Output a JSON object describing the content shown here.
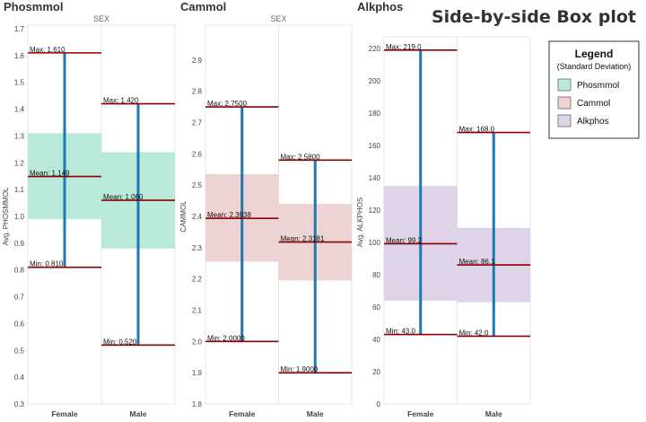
{
  "title": "Side-by-side Box plot",
  "legend": {
    "title": "Legend",
    "subtitle": "(Standard Deviation)",
    "items": [
      {
        "label": "Phosmmol",
        "color": "#b9e9d8"
      },
      {
        "label": "Cammol",
        "color": "#edd3d3"
      },
      {
        "label": "Alkphos",
        "color": "#dfd3e7"
      }
    ]
  },
  "colors": {
    "range_line": "#1f77b4",
    "stat_line": "#8b0000",
    "gridline": "#e6e6e6"
  },
  "chart_data": [
    {
      "type": "box",
      "title": "Phosmmol",
      "header": "SEX",
      "ylabel": "Avg. PHOSMMOL",
      "categories": [
        "Female",
        "Male"
      ],
      "ylim": [
        0.3,
        1.7
      ],
      "yticks": [
        0.3,
        0.4,
        0.5,
        0.6,
        0.7,
        0.8,
        0.9,
        1.0,
        1.1,
        1.2,
        1.3,
        1.4,
        1.5,
        1.6,
        1.7
      ],
      "ytick_labels": [
        "0.3",
        "0.4",
        "0.5",
        "0.6",
        "0.7",
        "0.8",
        "0.9",
        "1.0",
        "1.1",
        "1.2",
        "1.3",
        "1.4",
        "1.5",
        "1.6",
        "1.7"
      ],
      "band_color": "#b9e9d8",
      "groups": [
        {
          "category": "Female",
          "max": 1.61,
          "mean": 1.149,
          "min": 0.81,
          "band_low": 0.99,
          "band_high": 1.31,
          "max_label": "Max: 1.610",
          "mean_label": "Mean: 1.149",
          "min_label": "Min: 0.810"
        },
        {
          "category": "Male",
          "max": 1.42,
          "mean": 1.06,
          "min": 0.52,
          "band_low": 0.88,
          "band_high": 1.24,
          "max_label": "Max: 1.420",
          "mean_label": "Mean: 1.060",
          "min_label": "Min: 0.520"
        }
      ]
    },
    {
      "type": "box",
      "title": "Cammol",
      "header": "SEX",
      "ylabel": "CAMMOL",
      "categories": [
        "Female",
        "Male"
      ],
      "ylim": [
        1.8,
        3.0
      ],
      "yticks": [
        1.8,
        1.9,
        2.0,
        2.1,
        2.2,
        2.3,
        2.4,
        2.5,
        2.6,
        2.7,
        2.8,
        2.9
      ],
      "ytick_labels": [
        "1.8",
        "1.9",
        "2.0",
        "2.1",
        "2.2",
        "2.3",
        "2.4",
        "2.5",
        "2.6",
        "2.7",
        "2.8",
        "2.9"
      ],
      "band_color": "#edd3d3",
      "groups": [
        {
          "category": "Female",
          "max": 2.75,
          "mean": 2.3938,
          "min": 2.0,
          "band_low": 2.255,
          "band_high": 2.535,
          "max_label": "Max: 2.7500",
          "mean_label": "Mean: 2.3938",
          "min_label": "Min: 2.0000"
        },
        {
          "category": "Male",
          "max": 2.58,
          "mean": 2.3181,
          "min": 1.9,
          "band_low": 2.195,
          "band_high": 2.44,
          "max_label": "Max: 2.5800",
          "mean_label": "Mean: 2.3181",
          "min_label": "Min: 1.9000"
        }
      ]
    },
    {
      "type": "box",
      "title": "Alkphos",
      "header": "",
      "ylabel": "Avg. ALKPHOS",
      "categories": [
        "Female",
        "Male"
      ],
      "ylim": [
        0,
        225
      ],
      "yticks": [
        0,
        20,
        40,
        60,
        80,
        100,
        120,
        140,
        160,
        180,
        200,
        220
      ],
      "ytick_labels": [
        "0",
        "20",
        "40",
        "60",
        "80",
        "100",
        "120",
        "140",
        "160",
        "180",
        "200",
        "220"
      ],
      "band_color": "#dfd3e7",
      "groups": [
        {
          "category": "Female",
          "max": 219.0,
          "mean": 99.2,
          "min": 43.0,
          "band_low": 64,
          "band_high": 135,
          "max_label": "Max: 219.0",
          "mean_label": "Mean: 99.2",
          "min_label": "Min: 43.0"
        },
        {
          "category": "Male",
          "max": 168.0,
          "mean": 86.1,
          "min": 42.0,
          "band_low": 63,
          "band_high": 109,
          "max_label": "Max: 168.0",
          "mean_label": "Mean: 86.1",
          "min_label": "Min: 42.0"
        }
      ]
    }
  ]
}
